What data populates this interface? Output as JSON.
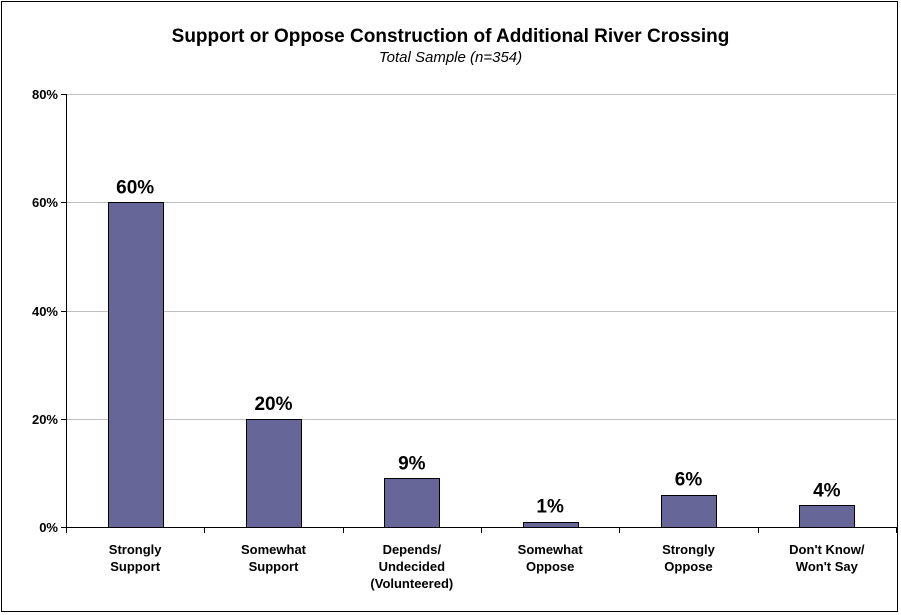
{
  "chart_data": {
    "type": "bar",
    "title": "Support or Oppose Construction of Additional River Crossing",
    "subtitle": "Total Sample (n=354)",
    "categories": [
      [
        "Strongly",
        "Support"
      ],
      [
        "Somewhat",
        "Support"
      ],
      [
        "Depends/",
        "Undecided",
        "(Volunteered)"
      ],
      [
        "Somewhat",
        "Oppose"
      ],
      [
        "Strongly",
        "Oppose"
      ],
      [
        "Don't Know/",
        "Won't Say"
      ]
    ],
    "values": [
      60,
      20,
      9,
      1,
      6,
      4
    ],
    "data_labels": [
      "60%",
      "20%",
      "9%",
      "1%",
      "6%",
      "4%"
    ],
    "ylim": [
      0,
      80
    ],
    "yticks": [
      0,
      20,
      40,
      60,
      80
    ],
    "ytick_labels": [
      "0%",
      "20%",
      "40%",
      "60%",
      "80%"
    ],
    "grid": true,
    "legend": "none",
    "colors": {
      "bar_fill": "#666699",
      "bar_stroke": "#000000",
      "grid": "#c0c0c0",
      "axis": "#000000"
    }
  }
}
